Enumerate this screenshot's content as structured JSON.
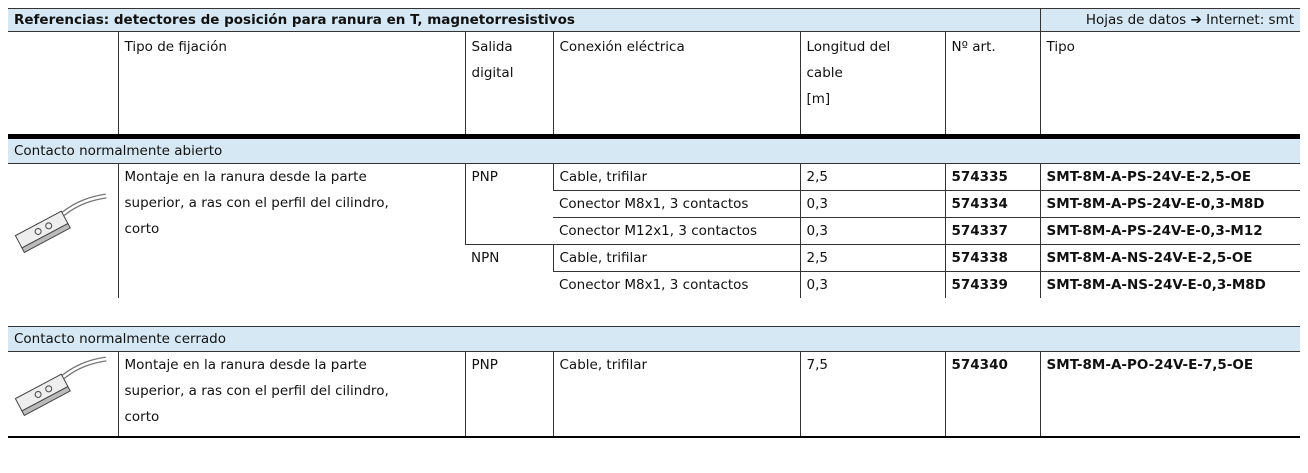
{
  "title": "Referencias: detectores de posición para ranura en T, magnetorresistivos",
  "datasheet": {
    "label": "Hojas de datos",
    "arrow": "➔",
    "link": "Internet: smt"
  },
  "header": [
    [
      "Tipo de fijación"
    ],
    [
      "Salida",
      "digital"
    ],
    [
      "Conexión eléctrica"
    ],
    [
      "Longitud del",
      "cable",
      "[m]"
    ],
    [
      "Nº art."
    ],
    [
      "Tipo"
    ]
  ],
  "sections": [
    {
      "title": "Contacto normalmente abierto",
      "mounting": [
        "Montaje en la ranura desde la parte",
        "superior, a ras con el perfil del cilindro,",
        "corto"
      ],
      "groups": [
        {
          "output": "PNP",
          "rows": [
            [
              "Cable, trifilar",
              "2,5",
              "574335",
              "SMT-8M-A-PS-24V-E-2,5-OE"
            ],
            [
              "Conector M8x1, 3 contactos",
              "0,3",
              "574334",
              "SMT-8M-A-PS-24V-E-0,3-M8D"
            ],
            [
              "Conector M12x1, 3 contactos",
              "0,3",
              "574337",
              "SMT-8M-A-PS-24V-E-0,3-M12"
            ]
          ]
        },
        {
          "output": "NPN",
          "rows": [
            [
              "Cable, trifilar",
              "2,5",
              "574338",
              "SMT-8M-A-NS-24V-E-2,5-OE"
            ],
            [
              "Conector M8x1, 3 contactos",
              "0,3",
              "574339",
              "SMT-8M-A-NS-24V-E-0,3-M8D"
            ]
          ]
        }
      ]
    },
    {
      "title": "Contacto normalmente cerrado",
      "mounting": [
        "Montaje en la ranura desde la parte",
        "superior, a ras con el perfil del cilindro,",
        "corto"
      ],
      "groups": [
        {
          "output": "PNP",
          "rows": [
            [
              "Cable, trifilar",
              "7,5",
              "574340",
              "SMT-8M-A-PO-24V-E-7,5-OE"
            ]
          ]
        }
      ]
    }
  ]
}
